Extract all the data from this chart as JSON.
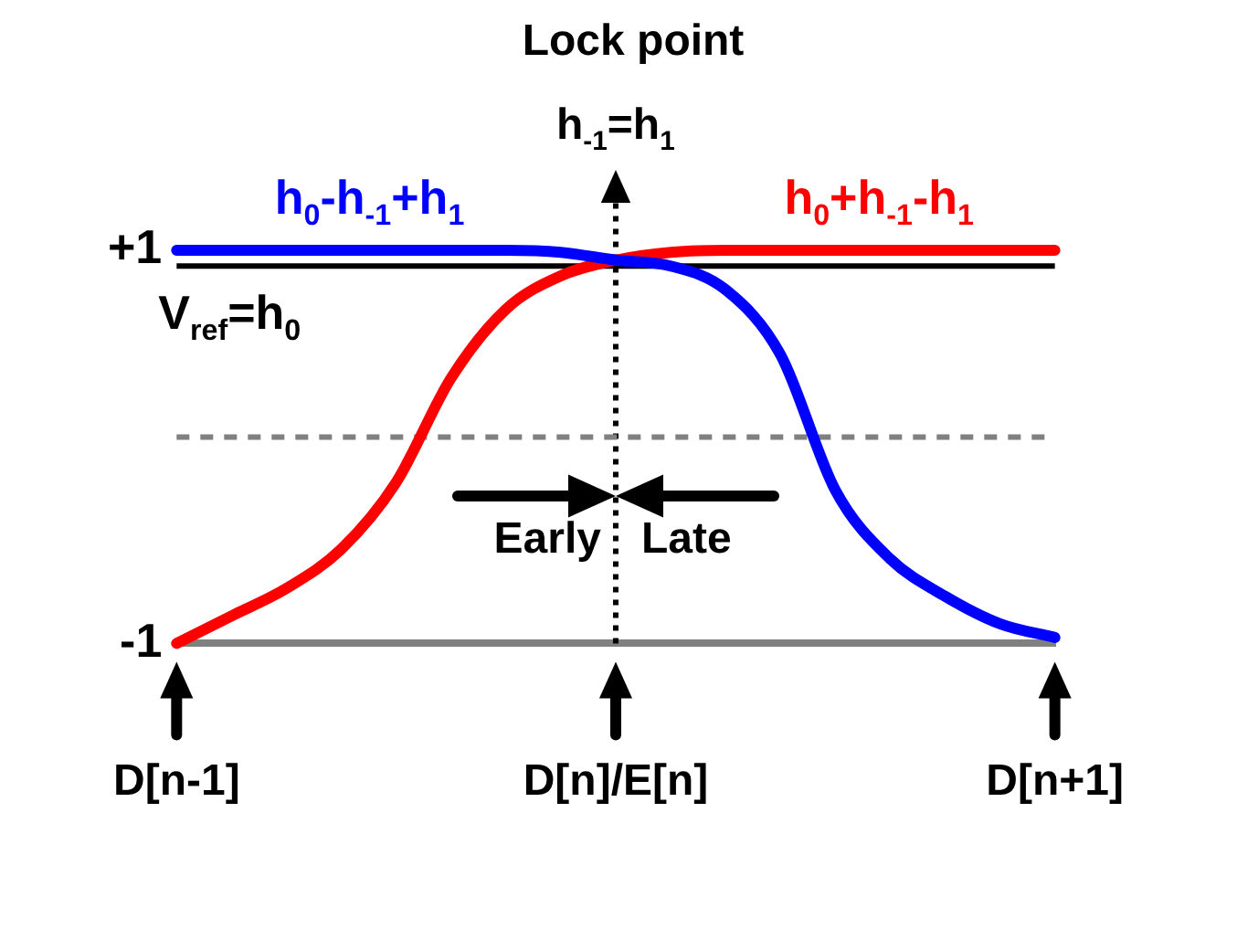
{
  "chart_data": {
    "type": "line",
    "title": "Lock point",
    "categories": [
      "D[n-1]",
      null,
      null,
      null,
      null,
      null,
      null,
      null,
      "D[n]/E[n]",
      null,
      null,
      null,
      null,
      null,
      null,
      null,
      "D[n+1]"
    ],
    "series": [
      {
        "name": "h$_{0}$-h$_{-1}$+h$_{1}$",
        "color": "#0000ff",
        "values": [
          1,
          1,
          1,
          1,
          1,
          1,
          1,
          0.99,
          0.95,
          0.92,
          0.8,
          0.47,
          -0.22,
          -0.57,
          -0.76,
          -0.9,
          -0.97
        ]
      },
      {
        "name": "h$_{0}$+h$_{-1}$-h$_{1}$",
        "color": "#ff0000",
        "values": [
          -1,
          -0.86,
          -0.72,
          -0.52,
          -0.18,
          0.35,
          0.7,
          0.87,
          0.95,
          0.99,
          1,
          1,
          1,
          1,
          1,
          1,
          1
        ]
      }
    ],
    "ylim": [
      -1,
      1
    ],
    "yticks": [
      {
        "value": 1,
        "label": "+1"
      },
      {
        "value": -1,
        "label": "-1"
      }
    ],
    "ref_lines": [
      {
        "axis": "x",
        "value": "D[n]/E[n]",
        "label": "h$_{-1}$=h$_{1}$",
        "color": "#000000",
        "line_style": "dotted"
      },
      {
        "axis": "y",
        "value": 0.92,
        "label": "V$_{ref}$=h$_{0}$",
        "color": "#000000"
      },
      {
        "axis": "y",
        "value": 0.05,
        "color": "#808080",
        "line_style": "dashed"
      }
    ],
    "annotations": [
      "Early",
      "Late"
    ],
    "marker": "none",
    "line_style": "solid"
  }
}
